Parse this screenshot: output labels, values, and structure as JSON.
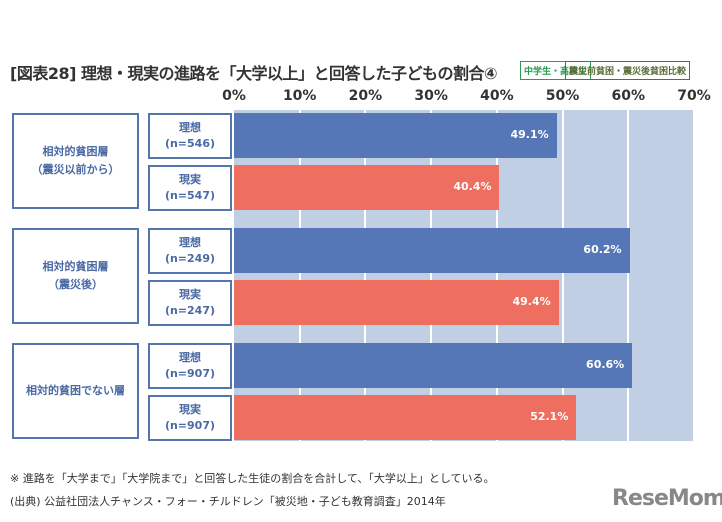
{
  "chart_data": {
    "type": "bar",
    "orientation": "horizontal",
    "title": "[図表28] 理想・現実の進路を「大学以上」と回答した子どもの割合④",
    "tags": [
      "中学生・高校生",
      "震災前貧困・震災後貧困比較"
    ],
    "xlim": [
      0,
      70
    ],
    "ticks": [
      "0%",
      "10%",
      "20%",
      "30%",
      "40%",
      "50%",
      "60%",
      "70%"
    ],
    "grid": true,
    "colors": {
      "理想": "#5577b8",
      "現実": "#ee6e5f",
      "plot_bg": "#c1cfe5"
    },
    "groups": [
      {
        "label": "相対的貧困層\n（震災以前から）",
        "rows": [
          {
            "type": "理想",
            "n": "(n=546)",
            "value": 49.1,
            "label": "49.1%"
          },
          {
            "type": "現実",
            "n": "(n=547)",
            "value": 40.4,
            "label": "40.4%"
          }
        ]
      },
      {
        "label": "相対的貧困層\n（震災後）",
        "rows": [
          {
            "type": "理想",
            "n": "(n=249)",
            "value": 60.2,
            "label": "60.2%"
          },
          {
            "type": "現実",
            "n": "(n=247)",
            "value": 49.4,
            "label": "49.4%"
          }
        ]
      },
      {
        "label": "相対的貧困でない層",
        "rows": [
          {
            "type": "理想",
            "n": "(n=907)",
            "value": 60.6,
            "label": "60.6%"
          },
          {
            "type": "現実",
            "n": "(n=907)",
            "value": 52.1,
            "label": "52.1%"
          }
        ]
      }
    ]
  },
  "notes": [
    "※ 進路を「大学まで」「大学院まで」と回答した生徒の割合を合計して、「大学以上」としている。",
    "(出典) 公益社団法人チャンス・フォー・チルドレン「被災地・子ども教育調査」2014年"
  ],
  "logo": "ReseMom"
}
